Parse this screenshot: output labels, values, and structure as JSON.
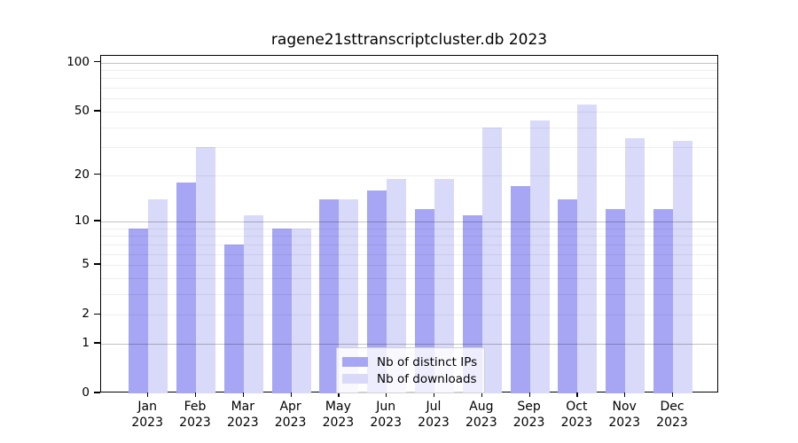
{
  "title": "ragene21sttranscriptcluster.db 2023",
  "chart_data": {
    "type": "bar",
    "title": "ragene21sttranscriptcluster.db 2023",
    "categories": [
      "Jan",
      "Feb",
      "Mar",
      "Apr",
      "May",
      "Jun",
      "Jul",
      "Aug",
      "Sep",
      "Oct",
      "Nov",
      "Dec"
    ],
    "category_year": "2023",
    "series": [
      {
        "name": "Nb of distinct IPs",
        "color": "#a6a6f4",
        "values": [
          9,
          18,
          7,
          9,
          14,
          16,
          12,
          11,
          17,
          14,
          12,
          12
        ]
      },
      {
        "name": "Nb of downloads",
        "color": "#d9d9f9",
        "values": [
          14,
          30,
          11,
          9,
          14,
          19,
          19,
          40,
          44,
          55,
          34,
          33
        ]
      }
    ],
    "xlabel": "",
    "ylabel": "",
    "yscale": "log1p",
    "ylim": [
      0,
      110
    ],
    "y_tick_values": [
      0,
      1,
      2,
      5,
      10,
      20,
      50,
      100
    ],
    "y_tick_labels": [
      "0",
      "1",
      "2",
      "5",
      "10",
      "20",
      "50",
      "100"
    ],
    "minor_gridlines": [
      2,
      3,
      4,
      5,
      6,
      7,
      8,
      9,
      20,
      30,
      40,
      50,
      60,
      70,
      80,
      90
    ],
    "major_gridlines": [
      1,
      10,
      100
    ],
    "grid": true,
    "legend_position": "bottom-center"
  }
}
